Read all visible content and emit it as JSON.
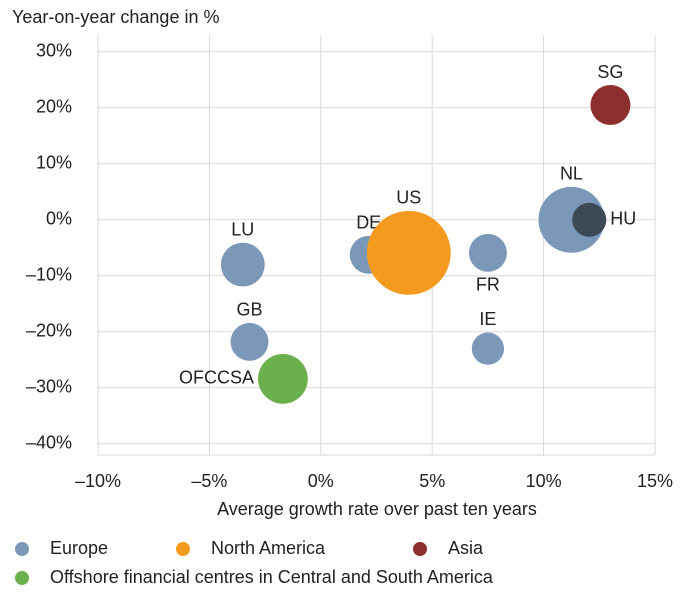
{
  "chart_data": {
    "type": "scatter",
    "y_label": "Year-on-year change in %",
    "x_label": "Average growth rate over past ten years",
    "xlim": [
      -10,
      15
    ],
    "ylim": [
      -42,
      33
    ],
    "xticks": [
      {
        "value": -10,
        "label": "–10%"
      },
      {
        "value": -5,
        "label": "–5%"
      },
      {
        "value": 0,
        "label": "0%"
      },
      {
        "value": 5,
        "label": "5%"
      },
      {
        "value": 10,
        "label": "10%"
      },
      {
        "value": 15,
        "label": "15%"
      }
    ],
    "yticks": [
      {
        "value": 30,
        "label": "30%"
      },
      {
        "value": 20,
        "label": "20%"
      },
      {
        "value": 10,
        "label": "10%"
      },
      {
        "value": 0,
        "label": "0%"
      },
      {
        "value": -10,
        "label": "–10%"
      },
      {
        "value": -20,
        "label": "–20%"
      },
      {
        "value": -30,
        "label": "–30%"
      },
      {
        "value": -40,
        "label": "–40%"
      }
    ],
    "grid": true,
    "legend": "bottom",
    "series": [
      {
        "name": "Europe",
        "color": "#7b98b9",
        "labels": [
          "LU",
          "GB",
          "DE",
          "FR",
          "IE",
          "NL",
          "HU"
        ],
        "x": [
          -3.5,
          -3.2,
          2.15,
          7.5,
          7.5,
          11.25,
          12.05
        ],
        "values": [
          -8.0,
          -21.8,
          -6.25,
          -5.9,
          -23,
          0,
          0
        ],
        "sizes": [
          48,
          36,
          36,
          36,
          26,
          109,
          29
        ],
        "point_colors": [
          "#7b98b9",
          "#7b98b9",
          "#7b98b9",
          "#7b98b9",
          "#7b98b9",
          "#7b98b9",
          "#3c4957"
        ]
      },
      {
        "name": "North America",
        "color": "#f49a1f",
        "labels": [
          "US"
        ],
        "x": [
          3.95
        ],
        "values": [
          -5.9
        ],
        "sizes": [
          176
        ]
      },
      {
        "name": "Asia",
        "color": "#8c2f2e",
        "labels": [
          "SG"
        ],
        "x": [
          13.0
        ],
        "values": [
          20.5
        ],
        "sizes": [
          40
        ]
      },
      {
        "name": "Offshore financial centres in Central and South America",
        "color": "#6ab04c",
        "labels": [
          "OFCCSA"
        ],
        "x": [
          -1.7
        ],
        "values": [
          -28.4
        ],
        "sizes": [
          62
        ]
      }
    ]
  }
}
